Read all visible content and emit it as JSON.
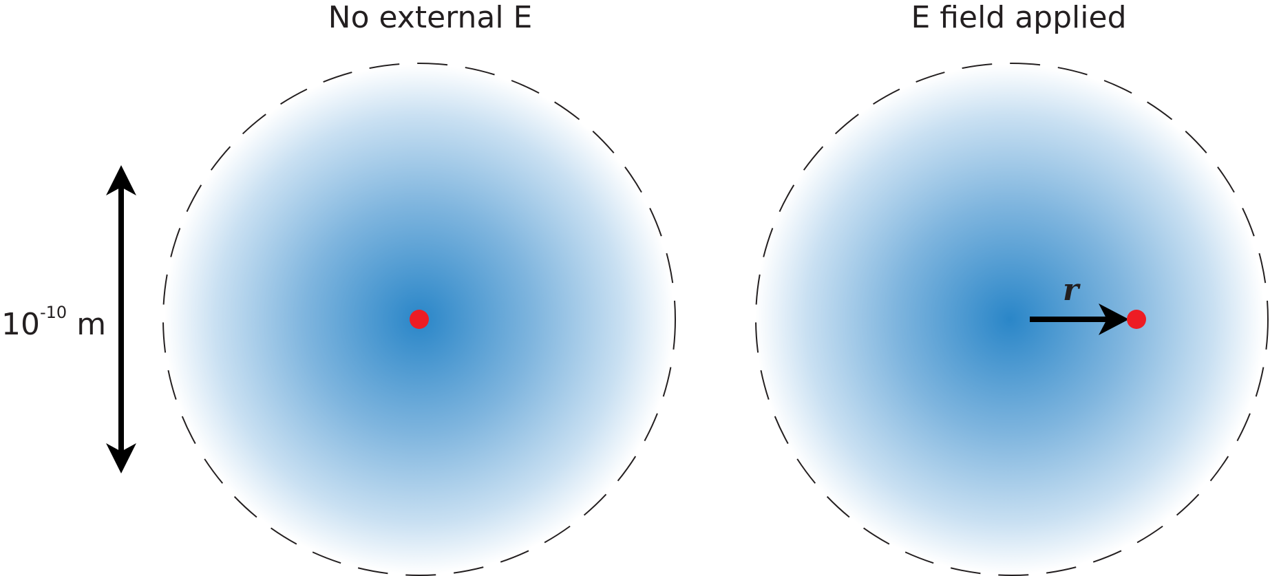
{
  "panels": {
    "left": {
      "title": "No external E"
    },
    "right": {
      "title": "E field applied"
    }
  },
  "scale_bar": {
    "base": "10",
    "exponent": "-10",
    "unit": "m"
  },
  "displacement_vector": {
    "label": "r"
  },
  "colors": {
    "electron_cloud_center": "#2a86c8",
    "electron_cloud_edge": "#ffffff",
    "nucleus": "#ed1c24",
    "boundary": "#231f20",
    "arrows": "#000000"
  }
}
